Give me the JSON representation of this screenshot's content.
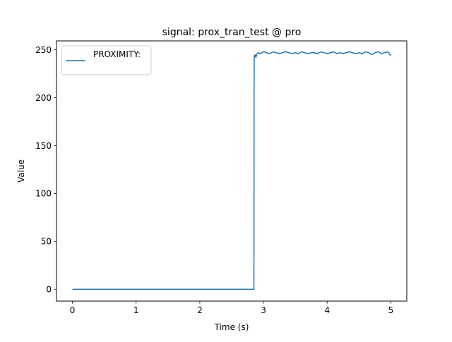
{
  "chart_data": {
    "type": "line",
    "title": "signal: prox_tran_test @ pro",
    "xlabel": "Time (s)",
    "ylabel": "Value",
    "xlim": [
      -0.25,
      5.25
    ],
    "ylim": [
      -12.35,
      259.35
    ],
    "xticks": [
      0,
      1,
      2,
      3,
      4,
      5
    ],
    "xtick_labels": [
      "0",
      "1",
      "2",
      "3",
      "4",
      "5"
    ],
    "yticks": [
      0,
      50,
      100,
      150,
      200,
      250
    ],
    "ytick_labels": [
      "0",
      "50",
      "100",
      "150",
      "200",
      "250"
    ],
    "grid": false,
    "legend": {
      "position": "top-left",
      "entries": [
        "PROXIMITY:"
      ]
    },
    "series": [
      {
        "name": "PROXIMITY:",
        "color": "#1f77b4",
        "x": [
          0,
          0.5,
          1.0,
          1.5,
          2.0,
          2.5,
          2.85,
          2.852,
          2.855,
          2.86,
          2.87,
          2.88,
          2.9,
          2.92,
          2.95,
          3.0,
          3.05,
          3.1,
          3.15,
          3.2,
          3.25,
          3.3,
          3.35,
          3.4,
          3.45,
          3.5,
          3.55,
          3.6,
          3.65,
          3.7,
          3.75,
          3.8,
          3.85,
          3.9,
          3.95,
          4.0,
          4.05,
          4.1,
          4.15,
          4.2,
          4.25,
          4.3,
          4.35,
          4.4,
          4.45,
          4.5,
          4.55,
          4.6,
          4.65,
          4.7,
          4.75,
          4.8,
          4.85,
          4.9,
          4.95,
          5.0
        ],
        "y": [
          0,
          0,
          0,
          0,
          0,
          0,
          0,
          208,
          244,
          243,
          245,
          242,
          246,
          247,
          246,
          248,
          247,
          246,
          248,
          247,
          246,
          247,
          248,
          247,
          246,
          247,
          246,
          248,
          247,
          246,
          247,
          247,
          246,
          248,
          247,
          246,
          247,
          248,
          246,
          247,
          246,
          247,
          248,
          247,
          246,
          247,
          246,
          248,
          247,
          245,
          247,
          248,
          246,
          247,
          248,
          244
        ]
      }
    ]
  }
}
